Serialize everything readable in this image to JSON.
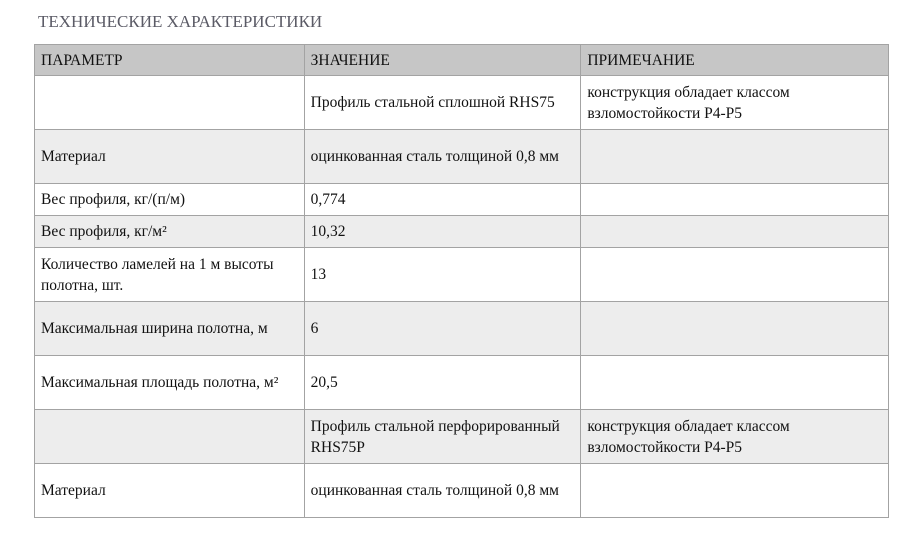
{
  "title": "ТЕХНИЧЕСКИЕ ХАРАКТЕРИСТИКИ",
  "table": {
    "headers": [
      "ПАРАМЕТР",
      "ЗНАЧЕНИЕ",
      "ПРИМЕЧАНИЕ"
    ],
    "rows": [
      [
        "",
        "Профиль стальной сплошной RHS75",
        "конструкция обладает классом взломостойкости P4-P5"
      ],
      [
        "Материал",
        "оцинкованная сталь толщиной 0,8 мм",
        ""
      ],
      [
        "Вес профиля, кг/(п/м)",
        "0,774",
        ""
      ],
      [
        "Вес профиля, кг/м²",
        "10,32",
        ""
      ],
      [
        "Количество ламелей на 1 м высоты полотна, шт.",
        "13",
        ""
      ],
      [
        "Максимальная ширина полотна, м",
        "6",
        ""
      ],
      [
        "Максимальная площадь полотна, м²",
        "20,5",
        ""
      ],
      [
        "",
        "Профиль стальной перфорированный RHS75P",
        "конструкция обладает классом взломостойкости P4-P5"
      ],
      [
        "Материал",
        "оцинкованная сталь толщиной 0,8 мм",
        ""
      ]
    ]
  }
}
